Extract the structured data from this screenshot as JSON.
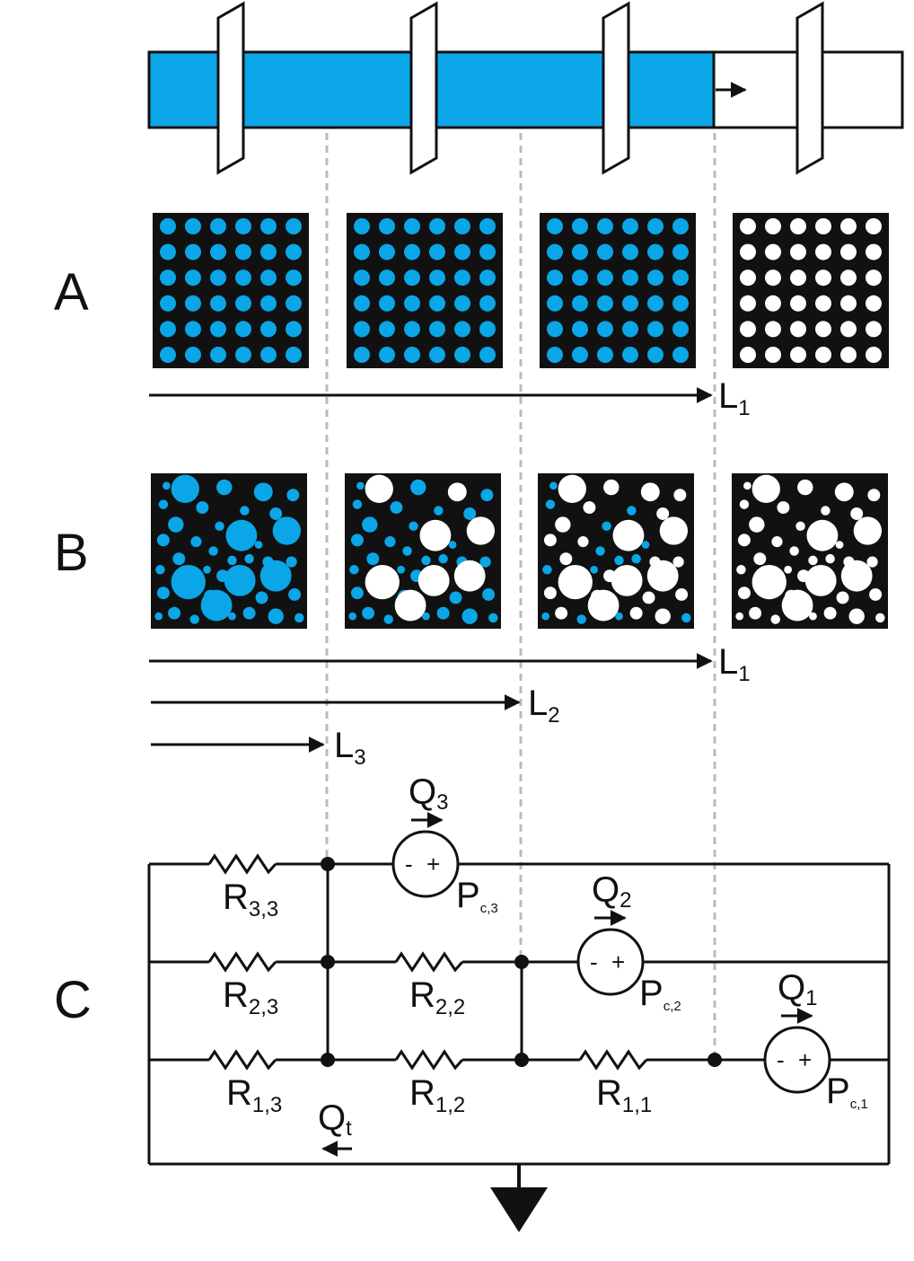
{
  "colors": {
    "fluid": "#0aa6e8",
    "matrix": "#111111",
    "empty_pore": "#ffffff",
    "guide": "#bbbbbb"
  },
  "panels": {
    "a": {
      "label": "A",
      "lengths": [
        {
          "main": "L",
          "sub": "1"
        }
      ]
    },
    "b": {
      "label": "B",
      "lengths": [
        {
          "main": "L",
          "sub": "1"
        },
        {
          "main": "L",
          "sub": "2"
        },
        {
          "main": "L",
          "sub": "3"
        }
      ]
    },
    "c": {
      "label": "C",
      "resistors": [
        {
          "main": "R",
          "sub": "3,3"
        },
        {
          "main": "R",
          "sub": "2,3"
        },
        {
          "main": "R",
          "sub": "2,2"
        },
        {
          "main": "R",
          "sub": "1,3"
        },
        {
          "main": "R",
          "sub": "1,2"
        },
        {
          "main": "R",
          "sub": "1,1"
        }
      ],
      "sources": [
        {
          "flow": "Q",
          "flow_sub": "3",
          "pressure": "P",
          "pressure_sub": "c,3",
          "minus": "-",
          "plus": "+"
        },
        {
          "flow": "Q",
          "flow_sub": "2",
          "pressure": "P",
          "pressure_sub": "c,2",
          "minus": "-",
          "plus": "+"
        },
        {
          "flow": "Q",
          "flow_sub": "1",
          "pressure": "P",
          "pressure_sub": "c,1",
          "minus": "-",
          "plus": "+"
        }
      ],
      "total_flow": {
        "main": "Q",
        "sub": "t"
      }
    }
  }
}
